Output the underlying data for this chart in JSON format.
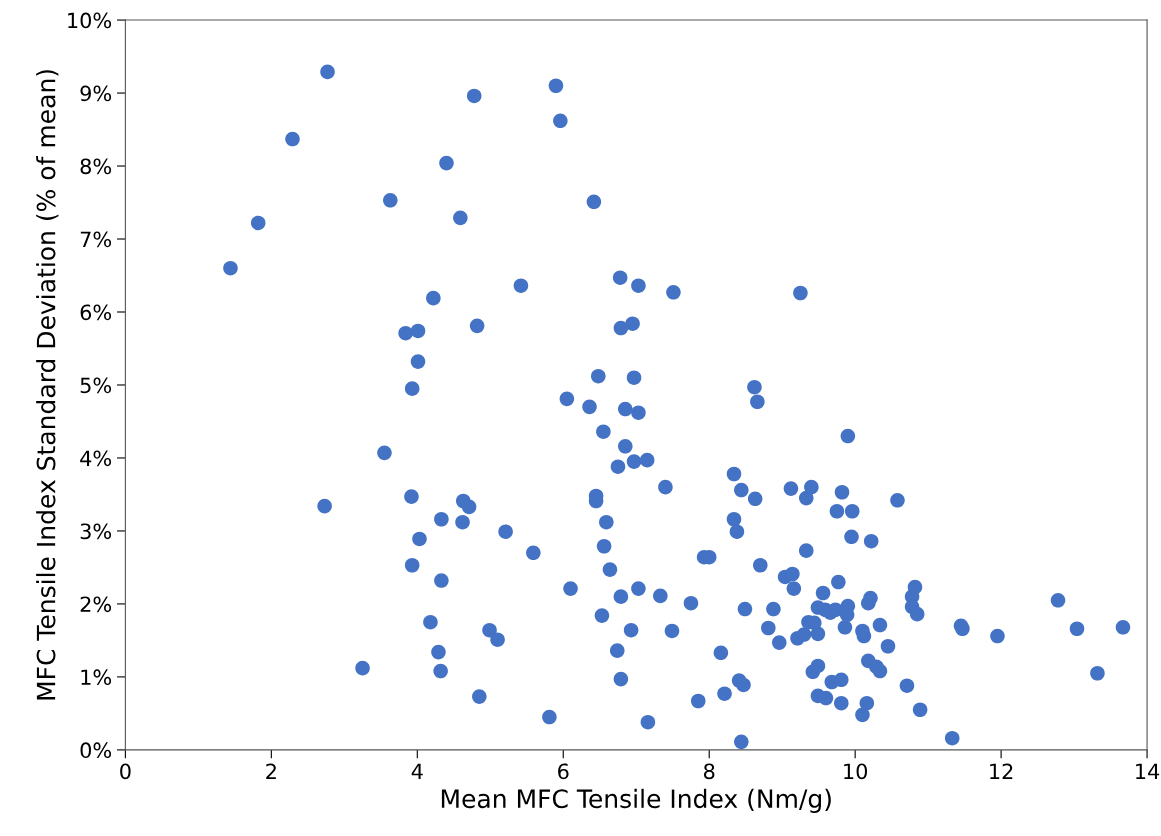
{
  "chart_data": {
    "type": "scatter",
    "xlabel": "Mean MFC Tensile Index (Nm/g)",
    "ylabel": "MFC Tensile Index Standard Deviation (% of mean)",
    "xlim": [
      0,
      14
    ],
    "xticks": [
      0,
      2,
      4,
      6,
      8,
      10,
      12,
      14
    ],
    "ylim": [
      0,
      10
    ],
    "yticks": [
      {
        "value": 0,
        "label": "0%"
      },
      {
        "value": 1,
        "label": "1%"
      },
      {
        "value": 2,
        "label": "2%"
      },
      {
        "value": 3,
        "label": "3%"
      },
      {
        "value": 4,
        "label": "4%"
      },
      {
        "value": 5,
        "label": "5%"
      },
      {
        "value": 6,
        "label": "6%"
      },
      {
        "value": 7,
        "label": "7%"
      },
      {
        "value": 8,
        "label": "8%"
      },
      {
        "value": 9,
        "label": "9%"
      },
      {
        "value": 10,
        "label": "10%"
      }
    ],
    "grid": false,
    "marker": "circle",
    "series": [
      {
        "color": "#4472c4",
        "x": [
          1.44,
          1.82,
          2.29,
          2.77,
          2.73,
          3.25,
          3.63,
          3.55,
          3.84,
          4.01,
          4.01,
          3.93,
          3.92,
          4.03,
          3.93,
          4.22,
          4.4,
          4.59,
          4.33,
          4.33,
          4.18,
          4.29,
          4.32,
          4.78,
          4.82,
          4.63,
          4.71,
          4.62,
          4.85,
          4.99,
          5.1,
          5.21,
          5.42,
          5.59,
          5.96,
          5.9,
          5.81,
          6.05,
          6.1,
          6.36,
          6.42,
          6.45,
          6.45,
          6.48,
          6.55,
          6.56,
          6.59,
          6.53,
          6.64,
          6.74,
          6.75,
          6.78,
          6.79,
          6.79,
          6.79,
          6.85,
          6.85,
          6.95,
          6.93,
          6.97,
          6.97,
          7.03,
          7.03,
          7.03,
          7.15,
          7.16,
          7.33,
          7.51,
          7.4,
          7.49,
          7.75,
          7.85,
          7.93,
          8.0,
          8.16,
          8.21,
          8.34,
          8.34,
          8.38,
          8.44,
          8.41,
          8.44,
          8.47,
          8.49,
          8.62,
          8.66,
          8.63,
          8.7,
          8.81,
          8.88,
          8.96,
          9.04,
          9.14,
          9.12,
          9.16,
          9.25,
          9.21,
          9.3,
          9.33,
          9.33,
          9.4,
          9.36,
          9.44,
          9.42,
          9.49,
          9.49,
          9.49,
          9.49,
          9.56,
          9.59,
          9.6,
          9.66,
          9.68,
          9.73,
          9.75,
          9.77,
          9.81,
          9.81,
          9.82,
          9.86,
          9.89,
          9.9,
          9.96,
          9.95,
          9.9,
          10.1,
          10.1,
          10.12,
          10.16,
          10.18,
          10.18,
          10.21,
          10.22,
          10.29,
          10.34,
          10.34,
          10.45,
          10.58,
          10.71,
          10.78,
          10.82,
          10.78,
          10.85,
          10.89,
          11.33,
          11.45,
          11.47,
          11.95,
          12.78,
          13.04,
          13.32,
          13.67
        ],
        "values": [
          6.6,
          7.22,
          8.37,
          9.29,
          3.34,
          1.12,
          7.53,
          4.07,
          5.71,
          5.74,
          5.32,
          4.95,
          3.47,
          2.89,
          2.53,
          6.19,
          8.04,
          7.29,
          3.16,
          2.32,
          1.75,
          1.34,
          1.08,
          8.96,
          5.81,
          3.41,
          3.33,
          3.12,
          0.73,
          1.64,
          1.51,
          2.99,
          6.36,
          2.7,
          8.62,
          9.1,
          0.45,
          4.81,
          2.21,
          4.7,
          7.51,
          3.48,
          3.41,
          5.12,
          4.36,
          2.79,
          3.12,
          1.84,
          2.47,
          1.36,
          3.88,
          6.47,
          5.78,
          2.1,
          0.97,
          4.67,
          4.16,
          5.84,
          1.64,
          5.1,
          3.95,
          6.36,
          4.62,
          2.21,
          3.97,
          0.38,
          2.11,
          6.27,
          3.6,
          1.63,
          2.01,
          0.67,
          2.64,
          2.64,
          1.33,
          0.77,
          3.78,
          3.16,
          2.99,
          3.56,
          0.95,
          0.11,
          0.89,
          1.93,
          4.97,
          4.77,
          3.44,
          2.53,
          1.67,
          1.93,
          1.47,
          2.37,
          2.41,
          3.58,
          2.21,
          6.26,
          1.53,
          1.58,
          2.73,
          3.45,
          3.6,
          1.75,
          1.74,
          1.07,
          1.95,
          1.59,
          1.15,
          0.74,
          2.15,
          1.92,
          0.71,
          1.88,
          0.93,
          1.92,
          3.27,
          2.3,
          0.96,
          0.64,
          3.53,
          1.68,
          1.85,
          1.97,
          3.27,
          2.92,
          4.3,
          0.48,
          1.63,
          1.56,
          0.64,
          1.22,
          2.01,
          2.08,
          2.86,
          1.14,
          1.08,
          1.71,
          1.42,
          3.42,
          0.88,
          2.1,
          2.23,
          1.96,
          1.86,
          0.55,
          0.16,
          1.7,
          1.66,
          1.56,
          2.05,
          1.66,
          1.05,
          1.68
        ]
      }
    ]
  }
}
